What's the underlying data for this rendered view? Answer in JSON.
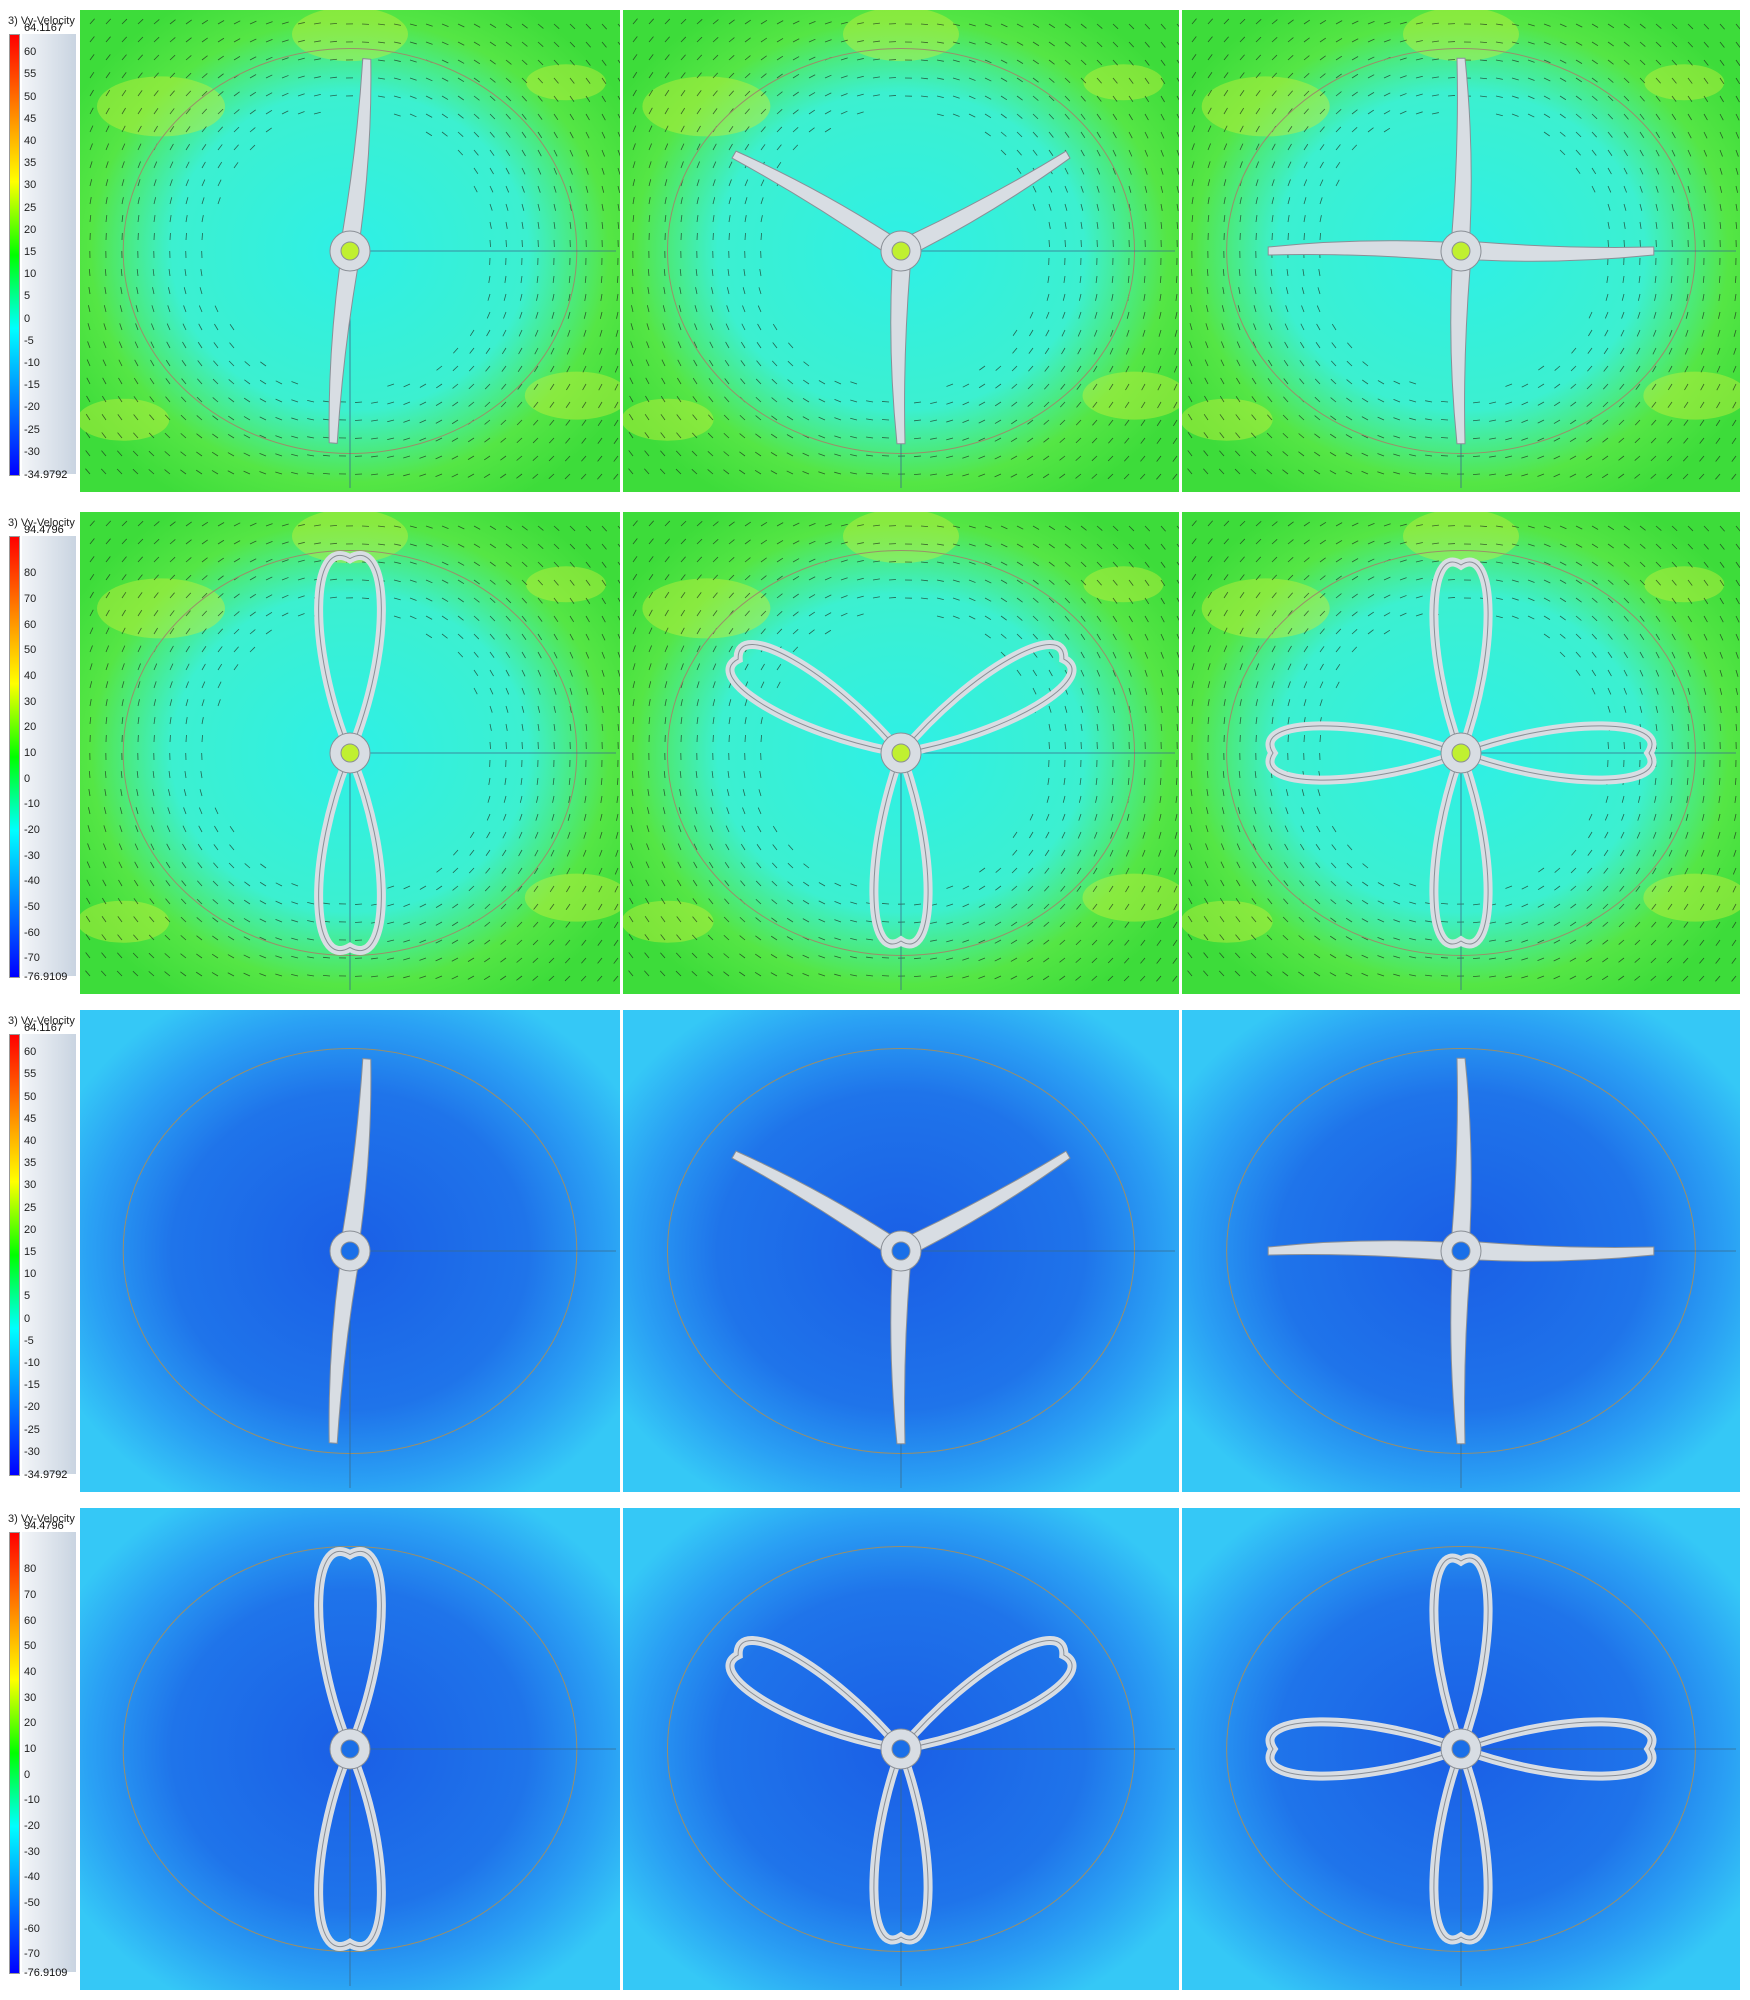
{
  "figure": {
    "rows": [
      {
        "id": "row-1",
        "field_title": "3) Vy-Velocity",
        "legend": {
          "max_label": "64.1167",
          "min_label": "-34.9792",
          "max_value": 64.1167,
          "min_value": -34.9792,
          "ticks": [
            "60",
            "55",
            "50",
            "45",
            "40",
            "35",
            "30",
            "25",
            "20",
            "15",
            "10",
            "5",
            "0",
            "-5",
            "-10",
            "-15",
            "-20",
            "-25",
            "-30"
          ],
          "tick_values": [
            60,
            55,
            50,
            45,
            40,
            35,
            30,
            25,
            20,
            15,
            10,
            5,
            0,
            -5,
            -10,
            -15,
            -20,
            -25,
            -30
          ]
        },
        "theme": "green",
        "vectors": true,
        "blade_type": "straight",
        "panels": [
          {
            "blades": 2
          },
          {
            "blades": 3
          },
          {
            "blades": 4
          }
        ]
      },
      {
        "id": "row-2",
        "field_title": "3) Vy-Velocity",
        "legend": {
          "max_label": "94.4796",
          "min_label": "-76.9109",
          "max_value": 94.4796,
          "min_value": -76.9109,
          "ticks": [
            "80",
            "70",
            "60",
            "50",
            "40",
            "30",
            "20",
            "10",
            "0",
            "-10",
            "-20",
            "-30",
            "-40",
            "-50",
            "-60",
            "-70"
          ],
          "tick_values": [
            80,
            70,
            60,
            50,
            40,
            30,
            20,
            10,
            0,
            -10,
            -20,
            -30,
            -40,
            -50,
            -60,
            -70
          ]
        },
        "theme": "green",
        "vectors": true,
        "blade_type": "loop",
        "panels": [
          {
            "blades": 2
          },
          {
            "blades": 3
          },
          {
            "blades": 4
          }
        ]
      },
      {
        "id": "row-3",
        "field_title": "3) Vy-Velocity",
        "legend": {
          "max_label": "64.1167",
          "min_label": "-34.9792",
          "max_value": 64.1167,
          "min_value": -34.9792,
          "ticks": [
            "60",
            "55",
            "50",
            "45",
            "40",
            "35",
            "30",
            "25",
            "20",
            "15",
            "10",
            "5",
            "0",
            "-5",
            "-10",
            "-15",
            "-20",
            "-25",
            "-30"
          ],
          "tick_values": [
            60,
            55,
            50,
            45,
            40,
            35,
            30,
            25,
            20,
            15,
            10,
            5,
            0,
            -5,
            -10,
            -15,
            -20,
            -25,
            -30
          ]
        },
        "theme": "blue",
        "vectors": false,
        "blade_type": "straight",
        "panels": [
          {
            "blades": 2
          },
          {
            "blades": 3
          },
          {
            "blades": 4
          }
        ]
      },
      {
        "id": "row-4",
        "field_title": "3) Vy-Velocity",
        "legend": {
          "max_label": "94.4796",
          "min_label": "-76.9109",
          "max_value": 94.4796,
          "min_value": -76.9109,
          "ticks": [
            "80",
            "70",
            "60",
            "50",
            "40",
            "30",
            "20",
            "10",
            "0",
            "-10",
            "-20",
            "-30",
            "-40",
            "-50",
            "-60",
            "-70"
          ],
          "tick_values": [
            80,
            70,
            60,
            50,
            40,
            30,
            20,
            10,
            0,
            -10,
            -20,
            -30,
            -40,
            -50,
            -60,
            -70
          ]
        },
        "theme": "blue",
        "vectors": false,
        "blade_type": "loop",
        "panels": [
          {
            "blades": 2
          },
          {
            "blades": 3
          },
          {
            "blades": 4
          }
        ]
      }
    ],
    "colormap": [
      "#ff0000",
      "#ff8000",
      "#ffff00",
      "#00ff00",
      "#00ffff",
      "#0080ff",
      "#0000ff"
    ],
    "colors": {
      "green_bg": "#3ddc3a",
      "green_inner": "#2ef0e6",
      "blue_bg": "#2a9cf2",
      "blue_inner": "#1a5fe6",
      "blade_fill": "#d8dde3",
      "blade_edge": "#8a8f96"
    }
  }
}
